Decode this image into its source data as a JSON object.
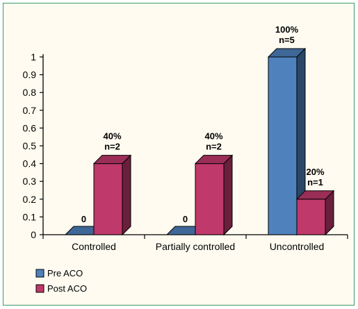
{
  "chart_data": {
    "type": "bar",
    "title": "",
    "xlabel": "",
    "ylabel": "",
    "ylim": [
      0,
      1
    ],
    "yticks": [
      "0",
      "0.1",
      "0.2",
      "0.3",
      "0.4",
      "0.5",
      "0.6",
      "0.7",
      "0.8",
      "0.9",
      "1"
    ],
    "categories": [
      "Controlled",
      "Partially controlled",
      "Uncontrolled"
    ],
    "series": [
      {
        "name": "Pre ACO",
        "color": "#4f81bd",
        "values": [
          0,
          0,
          1.0
        ],
        "labels": [
          [
            "0"
          ],
          [
            "0"
          ],
          [
            "100%",
            "n=5"
          ]
        ]
      },
      {
        "name": "Post ACO",
        "color": "#c0396b",
        "values": [
          0.4,
          0.4,
          0.2
        ],
        "labels": [
          [
            "40%",
            "n=2"
          ],
          [
            "40%",
            "n=2"
          ],
          [
            "20%",
            "n=1"
          ]
        ]
      }
    ],
    "legend_position": "bottom-left",
    "grid": false,
    "style": "3d"
  }
}
